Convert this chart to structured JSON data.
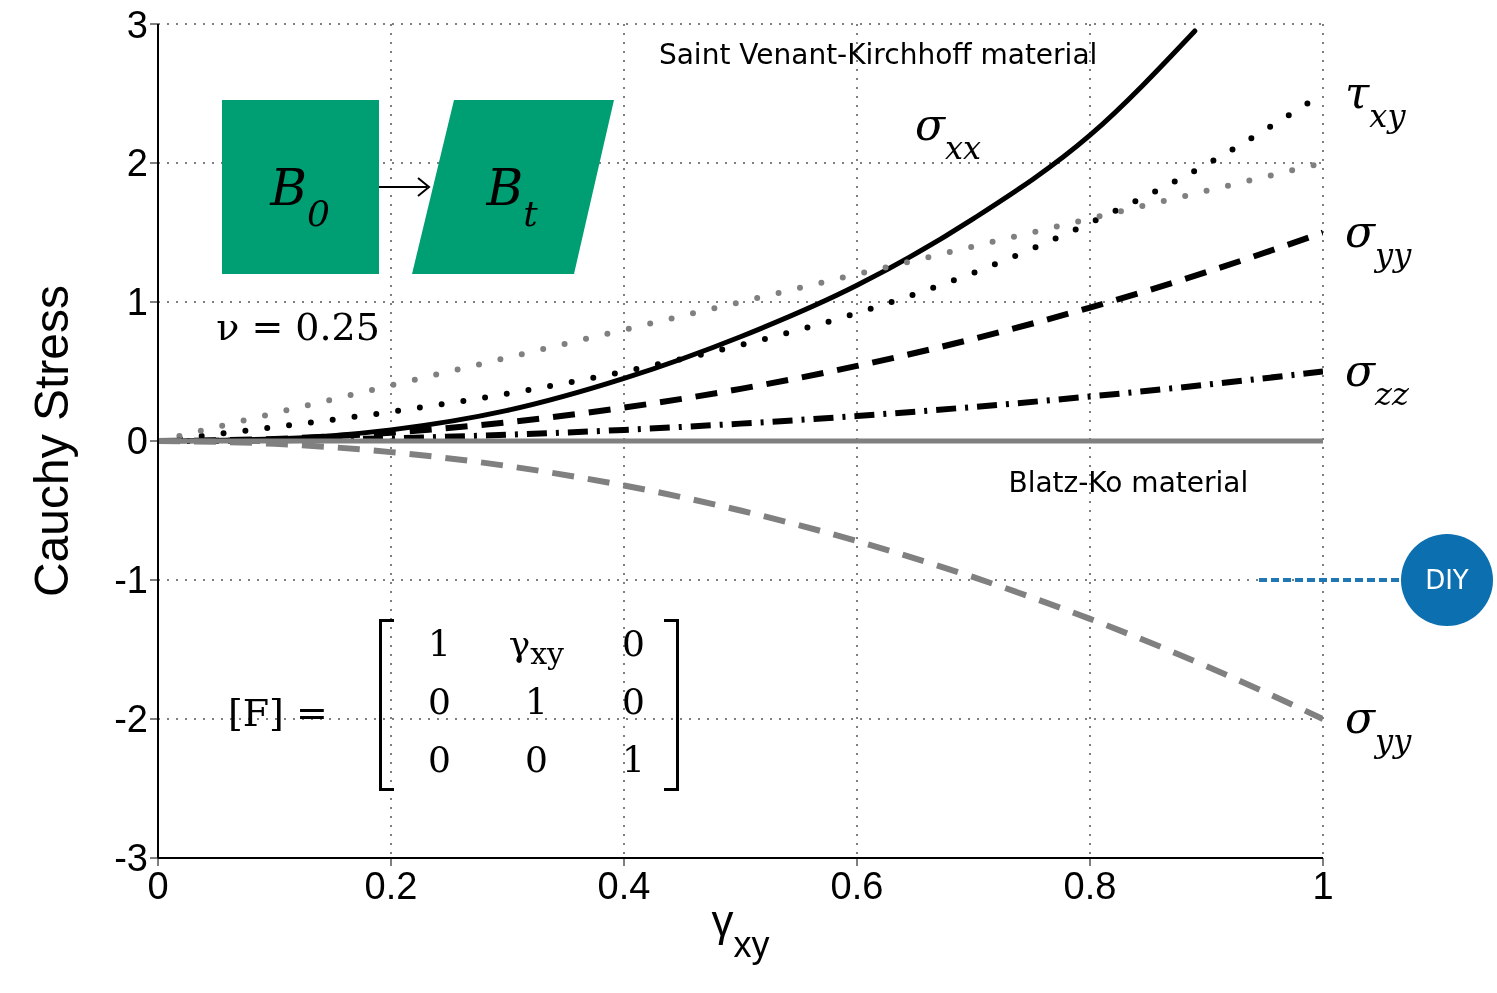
{
  "chart_data": {
    "type": "line",
    "xlabel": "γ$_{xy}$",
    "ylabel": "Cauchy Stress",
    "x": [
      0,
      0.1,
      0.2,
      0.3,
      0.4,
      0.5,
      0.6,
      0.7,
      0.8,
      0.9,
      1
    ],
    "series": [
      {
        "name": "σ$_{xx}$",
        "color": "#000000",
        "line_style": "solid",
        "x": [
          0,
          0.1,
          0.2,
          0.3,
          0.4,
          0.5,
          0.6,
          0.7,
          0.8,
          0.89
        ],
        "values": [
          0,
          0.015,
          0.08,
          0.22,
          0.45,
          0.75,
          1.12,
          1.6,
          2.2,
          2.95
        ]
      },
      {
        "name": "τ$_{xy}$",
        "color": "#000000",
        "line_style": "dotted",
        "values": [
          0,
          0.1,
          0.21,
          0.34,
          0.5,
          0.69,
          0.92,
          1.21,
          1.57,
          1.99,
          2.5
        ]
      },
      {
        "color": "#808080",
        "line_style": "dotted",
        "values": [
          0,
          0.2,
          0.4,
          0.6,
          0.8,
          1,
          1.2,
          1.4,
          1.6,
          1.8,
          2
        ]
      },
      {
        "name": "σ$_{yy}$",
        "color": "#000000",
        "line_style": "dashed",
        "values": [
          0,
          0.015,
          0.06,
          0.135,
          0.24,
          0.375,
          0.54,
          0.735,
          0.96,
          1.215,
          1.5
        ]
      },
      {
        "name": "σ$_{zz}$",
        "color": "#000000",
        "line_style": "dashdot",
        "values": [
          0,
          0.005,
          0.02,
          0.045,
          0.08,
          0.125,
          0.18,
          0.245,
          0.32,
          0.405,
          0.5
        ]
      },
      {
        "color": "#808080",
        "line_style": "solid",
        "values": [
          0,
          0,
          0,
          0,
          0,
          0,
          0,
          0,
          0,
          0,
          0
        ]
      },
      {
        "name": "σ$_{yy}$",
        "color": "#808080",
        "line_style": "dashed",
        "values": [
          0,
          -0.02,
          -0.08,
          -0.18,
          -0.32,
          -0.5,
          -0.72,
          -0.98,
          -1.28,
          -1.62,
          -2
        ]
      }
    ],
    "xlim": [
      0,
      1
    ],
    "xticks": [
      0,
      0.2,
      0.4,
      0.6,
      0.8,
      1
    ],
    "ylim": [
      -3,
      3
    ],
    "yticks": [
      -3,
      -2,
      -1,
      0,
      1,
      2,
      3
    ],
    "grid": true,
    "marker": "none",
    "annotations": [
      "Saint Venant-Kirchhoff material",
      "Blatz-Ko material",
      "ν = 0.25",
      "B$_{0}$",
      "B$_{t}$",
      "[F] =",
      "1",
      "γ$_{xy}$",
      "0",
      "0",
      "1",
      "0",
      "0",
      "0",
      "1",
      "DIY"
    ]
  }
}
